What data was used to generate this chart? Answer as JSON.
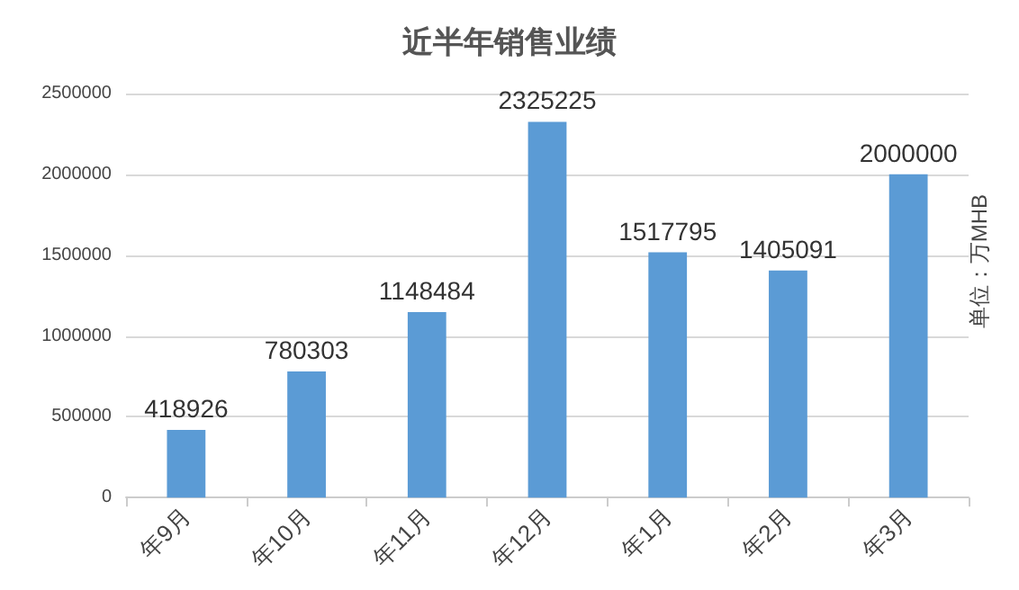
{
  "chart_data": {
    "type": "bar",
    "title": "近半年销售业绩",
    "categories": [
      "年9月",
      "年10月",
      "年11月",
      "年12月",
      "年1月",
      "年2月",
      "年3月"
    ],
    "values": [
      418926,
      780303,
      1148484,
      2325225,
      1517795,
      1405091,
      2000000
    ],
    "color": "#5b9bd5",
    "ylim": [
      0,
      2500000
    ],
    "yticks": [
      0,
      500000,
      1000000,
      1500000,
      2000000,
      2500000
    ],
    "grid": "y",
    "data_labels": true,
    "annotations": [
      "单位：万MHB"
    ]
  }
}
